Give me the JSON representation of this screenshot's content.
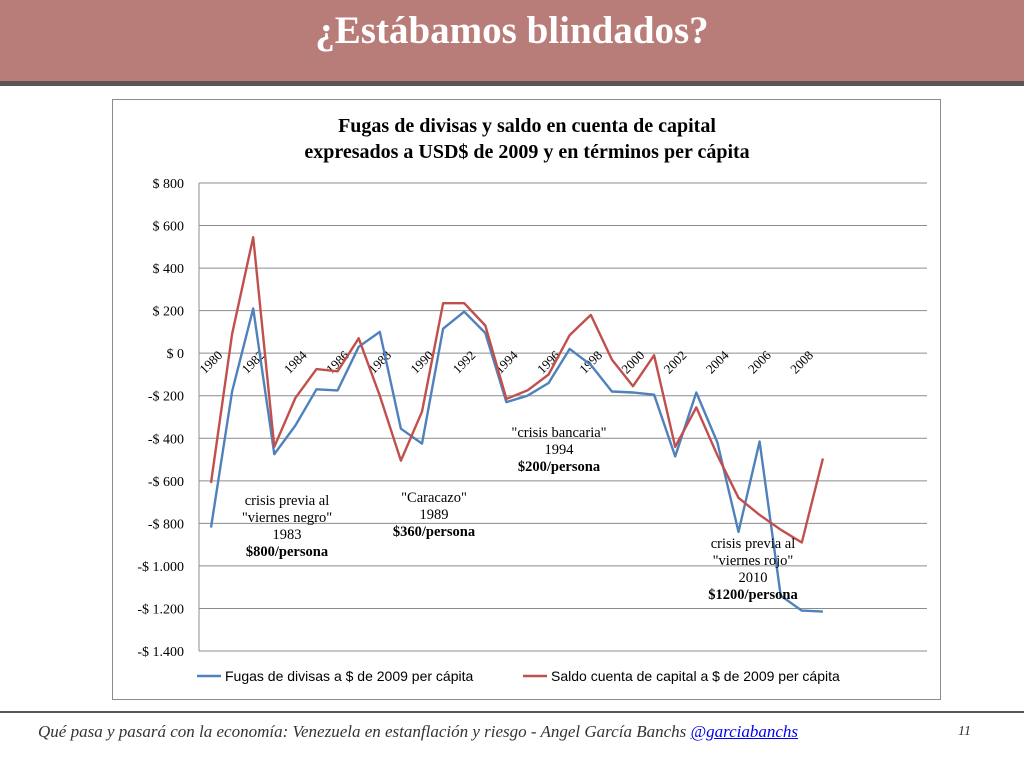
{
  "slide": {
    "title": "¿Estábamos blindados?",
    "footer_text": "Qué pasa y pasará con la economía: Venezuela en estanflación y riesgo - Angel García Banchs",
    "footer_handle": "@garciabanchs",
    "page_number": "11"
  },
  "colors": {
    "title_bar": "#b87c79",
    "series_fugas": "#4f81bd",
    "series_saldo": "#c0504d",
    "grid": "#8c8c8c"
  },
  "chart_data": {
    "type": "line",
    "title_line1": "Fugas de divisas y saldo en cuenta de capital",
    "title_line2": "expresados a USD$ de 2009 y en términos per cápita",
    "x": [
      1980,
      1981,
      1982,
      1983,
      1984,
      1985,
      1986,
      1987,
      1988,
      1989,
      1990,
      1991,
      1992,
      1993,
      1994,
      1995,
      1996,
      1997,
      1998,
      1999,
      2000,
      2001,
      2002,
      2003,
      2004,
      2005,
      2006,
      2007,
      2008,
      2009
    ],
    "x_tick_labels": [
      "1980",
      "1982",
      "1984",
      "1986",
      "1988",
      "1990",
      "1992",
      "1994",
      "1996",
      "1998",
      "2000",
      "2002",
      "2004",
      "2006",
      "2008"
    ],
    "y_ticks": [
      800,
      600,
      400,
      200,
      0,
      -200,
      -400,
      -600,
      -800,
      -1000,
      -1200,
      -1400
    ],
    "y_tick_labels": [
      "$ 800",
      "$ 600",
      "$ 400",
      "$ 200",
      "$ 0",
      "-$ 200",
      "-$ 400",
      "-$ 600",
      "-$ 800",
      "-$ 1.000",
      "-$ 1.200",
      "-$ 1.400"
    ],
    "ylim": [
      -1400,
      800
    ],
    "grid": true,
    "legend_position": "bottom",
    "series": [
      {
        "name": "Fugas de divisas a $ de 2009 per cápita",
        "values": [
          -820,
          -180,
          210,
          -475,
          -340,
          -170,
          -175,
          30,
          100,
          -355,
          -425,
          115,
          195,
          95,
          -230,
          -200,
          -140,
          20,
          -55,
          -180,
          -185,
          -195,
          -485,
          -185,
          -420,
          -840,
          -415,
          -1140,
          -1210,
          -1215
        ]
      },
      {
        "name": "Saldo cuenta de capital a $ de 2009 per cápita",
        "values": [
          -610,
          90,
          545,
          -440,
          -210,
          -75,
          -85,
          70,
          -200,
          -505,
          -275,
          235,
          235,
          130,
          -215,
          -175,
          -100,
          85,
          180,
          -30,
          -155,
          -10,
          -440,
          -255,
          -480,
          -680,
          -760,
          -830,
          -890,
          -495
        ]
      }
    ],
    "annotations": [
      {
        "lines": [
          "crisis previa al",
          "\"viernes negro\"",
          "1983"
        ],
        "bold": "$800/persona"
      },
      {
        "lines": [
          "\"Caracazo\"",
          "1989"
        ],
        "bold": "$360/persona"
      },
      {
        "lines": [
          "\"crisis bancaria\"",
          "1994"
        ],
        "bold": "$200/persona"
      },
      {
        "lines": [
          "crisis previa al",
          "\"viernes rojo\"",
          "2010"
        ],
        "bold": "$1200/persona"
      }
    ]
  }
}
